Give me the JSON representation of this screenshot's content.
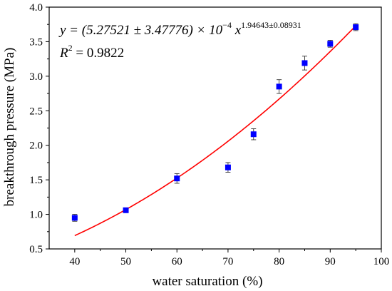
{
  "chart_data": {
    "type": "scatter",
    "title": "",
    "xlabel": "water saturation (%)",
    "ylabel": "breakthrough pressure (MPa)",
    "xlim": [
      35,
      100
    ],
    "ylim": [
      0.5,
      4.0
    ],
    "xticks": [
      40,
      50,
      60,
      70,
      80,
      90,
      100
    ],
    "yticks": [
      0.5,
      1.0,
      1.5,
      2.0,
      2.5,
      3.0,
      3.5,
      4.0
    ],
    "xtick_labels": [
      "40",
      "50",
      "60",
      "70",
      "80",
      "90",
      "100"
    ],
    "ytick_labels": [
      "0.5",
      "1.0",
      "1.5",
      "2.0",
      "2.5",
      "3.0",
      "3.5",
      "4.0"
    ],
    "grid": false,
    "points": {
      "x": [
        40,
        50,
        60,
        70,
        75,
        80,
        85,
        90,
        95
      ],
      "y": [
        0.95,
        1.06,
        1.52,
        1.68,
        2.16,
        2.85,
        3.19,
        3.47,
        3.71
      ],
      "err": [
        0.05,
        0.02,
        0.07,
        0.07,
        0.08,
        0.1,
        0.1,
        0.05,
        0.05
      ],
      "color": "#0000ff"
    },
    "fit": {
      "model": "power",
      "a": 0.000527521,
      "b": 1.94643,
      "x_range": [
        40,
        95
      ],
      "color": "#ff0000"
    },
    "annotation": {
      "equation_main": "y = (5.27521 ± 3.47776) × 10",
      "equation_exp": "−4",
      "equation_var": " x",
      "equation_pow": "1.94643±0.08931",
      "r2_label": "R",
      "r2_sup": "2",
      "r2_value": " = 0.9822"
    }
  }
}
